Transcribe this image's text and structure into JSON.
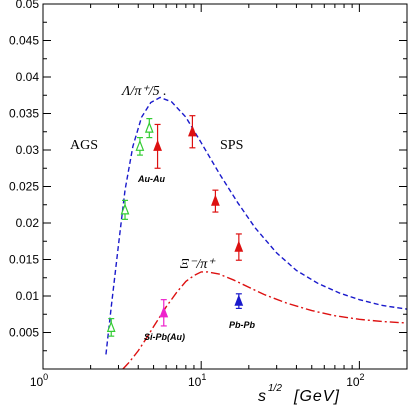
{
  "chart_data": {
    "type": "scatter",
    "title": "",
    "xlabel": "s^{1/2} [GeV]",
    "ylabel": "",
    "xscale": "log",
    "xlim": [
      1,
      200
    ],
    "ylim": [
      0,
      0.05
    ],
    "grid": false,
    "x_ticks": [
      "10^0",
      "10^1",
      "10^2"
    ],
    "y_ticks": [
      "0",
      "0.005",
      "0.01",
      "0.015",
      "0.02",
      "0.025",
      "0.03",
      "0.035",
      "0.04",
      "0.045",
      "0.05"
    ],
    "annotations": {
      "ags": "AGS",
      "sps": "SPS",
      "lambda_curve": "Λ/π⁺/5 .",
      "xi_curve": "Ξ⁻/π⁺",
      "au_au": "Au-Au",
      "si_pb": "Si-Pb(Au)",
      "pb_pb": "Pb-Pb"
    },
    "series": [
      {
        "kind": "curve",
        "style": "dashed",
        "color": "#1a1acc",
        "x": [
          2.5,
          2.7,
          3.0,
          3.3,
          3.7,
          4.2,
          4.8,
          5.5,
          6.5,
          8,
          10,
          13,
          17,
          22,
          30,
          40,
          55,
          75,
          100,
          140,
          200
        ],
        "y": [
          0.002,
          0.0085,
          0.017,
          0.0245,
          0.0305,
          0.0345,
          0.0365,
          0.0372,
          0.0366,
          0.0345,
          0.031,
          0.0268,
          0.0228,
          0.0193,
          0.0159,
          0.0135,
          0.0117,
          0.0104,
          0.0095,
          0.0087,
          0.0082
        ]
      },
      {
        "kind": "curve",
        "style": "dash-dot",
        "color": "#dd1111",
        "x": [
          3.2,
          3.5,
          4,
          4.5,
          5,
          6,
          7,
          8,
          9,
          10,
          11,
          13,
          16,
          20,
          25,
          35,
          50,
          70,
          100,
          140,
          200
        ],
        "y": [
          0.0,
          0.0009,
          0.0025,
          0.0042,
          0.0058,
          0.0085,
          0.0105,
          0.012,
          0.0128,
          0.0133,
          0.0133,
          0.013,
          0.0122,
          0.0112,
          0.0102,
          0.009,
          0.008,
          0.0073,
          0.0068,
          0.0065,
          0.0063
        ]
      },
      {
        "kind": "points",
        "marker": "triangle-open",
        "color": "#33cc33",
        "x": [
          2.7,
          3.3,
          4.1,
          4.7
        ],
        "y": [
          0.0057,
          0.0218,
          0.0305,
          0.033
        ],
        "err": [
          0.0012,
          0.0013,
          0.0012,
          0.0013
        ]
      },
      {
        "kind": "points",
        "marker": "triangle-filled",
        "color": "#dd1111",
        "x": [
          5.3,
          8.8,
          12.3,
          17.3
        ],
        "y": [
          0.0305,
          0.0325,
          0.023,
          0.0167
        ],
        "err": [
          0.003,
          0.0022,
          0.0015,
          0.0018
        ]
      },
      {
        "kind": "points",
        "marker": "triangle-filled",
        "color": "#ee22cc",
        "x": [
          5.8
        ],
        "y": [
          0.0077
        ],
        "err": [
          0.0018
        ]
      },
      {
        "kind": "points",
        "marker": "triangle-filled",
        "color": "#1a1acc",
        "x": [
          17.3
        ],
        "y": [
          0.0093
        ],
        "err": [
          0.001
        ]
      }
    ]
  }
}
